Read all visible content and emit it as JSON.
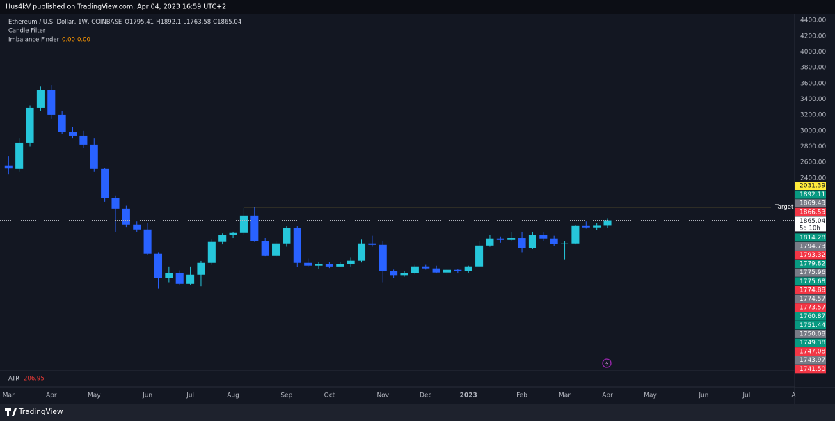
{
  "header": "Hus4kV published on TradingView.com, Apr 04, 2023 16:59 UTC+2",
  "footer": "TradingView",
  "chart_data": {
    "type": "candlestick",
    "legend": {
      "symbol": "Ethereum / U.S. Dollar, 1W, COINBASE",
      "keys": [
        "O",
        "H",
        "L",
        "C"
      ],
      "indicators": [
        "Candle Filter",
        "Imbalance Finder"
      ],
      "imbalance_values": [
        {
          "value": 0,
          "label": "0.00"
        },
        {
          "value": 0,
          "label": "0.00"
        }
      ]
    },
    "up_color": "#26c6da",
    "down_color": "#2962ff",
    "open": [
      2560,
      2515,
      2849,
      3290,
      3510,
      3202,
      2981,
      2937,
      2823,
      2515,
      2144,
      2012,
      1810,
      1748,
      1440,
      1131,
      1193,
      1060,
      1175,
      1325,
      1590,
      1678,
      1704,
      1924,
      1598,
      1413,
      1572,
      1766,
      1325,
      1290,
      1310,
      1280,
      1308,
      1352,
      1572,
      1554,
      1219,
      1170,
      1193,
      1281,
      1255,
      1202,
      1237,
      1220,
      1281,
      1545,
      1634,
      1616,
      1640,
      1510,
      1678,
      1634,
      1565,
      1572,
      1792,
      1775,
      1795.41
    ],
    "high": [
      2680,
      2900,
      3320,
      3560,
      3580,
      3250,
      3050,
      3000,
      2900,
      2530,
      2180,
      2050,
      1850,
      1830,
      1460,
      1280,
      1230,
      1280,
      1350,
      1620,
      1700,
      1720,
      2020,
      2030,
      1640,
      1600,
      1790,
      1790,
      1380,
      1340,
      1340,
      1340,
      1390,
      1620,
      1670,
      1600,
      1240,
      1220,
      1300,
      1300,
      1290,
      1250,
      1250,
      1290,
      1600,
      1680,
      1660,
      1720,
      1720,
      1720,
      1710,
      1670,
      1600,
      1800,
      1850,
      1830,
      1892.1
    ],
    "low": [
      2450,
      2480,
      2800,
      3250,
      3150,
      2960,
      2900,
      2780,
      2480,
      2100,
      1720,
      1780,
      1720,
      1420,
      1000,
      1080,
      1040,
      1050,
      1030,
      1300,
      1560,
      1640,
      1680,
      1590,
      1410,
      1400,
      1530,
      1270,
      1270,
      1250,
      1260,
      1270,
      1280,
      1330,
      1530,
      1080,
      1130,
      1150,
      1180,
      1240,
      1190,
      1170,
      1190,
      1200,
      1270,
      1530,
      1580,
      1600,
      1460,
      1500,
      1600,
      1540,
      1370,
      1560,
      1760,
      1740,
      1763.58
    ],
    "close": [
      2520,
      2849,
      3290,
      3510,
      3202,
      2981,
      2937,
      2823,
      2515,
      2144,
      2012,
      1810,
      1748,
      1440,
      1131,
      1193,
      1060,
      1175,
      1325,
      1590,
      1678,
      1704,
      1924,
      1598,
      1413,
      1572,
      1766,
      1325,
      1290,
      1310,
      1280,
      1308,
      1352,
      1572,
      1554,
      1219,
      1170,
      1193,
      1281,
      1255,
      1202,
      1237,
      1220,
      1281,
      1545,
      1634,
      1616,
      1640,
      1510,
      1678,
      1634,
      1565,
      1572,
      1792,
      1775,
      1795,
      1865.04
    ],
    "xlim": [
      -0.8,
      73.5
    ],
    "xticks": [
      {
        "value": 0,
        "label": "Mar"
      },
      {
        "value": 4,
        "label": "Apr"
      },
      {
        "value": 8,
        "label": "May"
      },
      {
        "value": 13,
        "label": "Jun"
      },
      {
        "value": 17,
        "label": "Jul"
      },
      {
        "value": 21,
        "label": "Aug"
      },
      {
        "value": 26,
        "label": "Sep"
      },
      {
        "value": 30,
        "label": "Oct"
      },
      {
        "value": 35,
        "label": "Nov"
      },
      {
        "value": 39,
        "label": "Dec"
      },
      {
        "value": 43,
        "label": "2023"
      },
      {
        "value": 48,
        "label": "Feb"
      },
      {
        "value": 52,
        "label": "Mar"
      },
      {
        "value": 56,
        "label": "Apr"
      },
      {
        "value": 60,
        "label": "May"
      },
      {
        "value": 65,
        "label": "Jun"
      },
      {
        "value": 69,
        "label": "Jul"
      },
      {
        "value": 73.4,
        "label": "A"
      }
    ],
    "ylim": [
      0,
      4480
    ],
    "yticks": [
      {
        "value": 2400,
        "label": "2400.00"
      },
      {
        "value": 2600,
        "label": "2600.00"
      },
      {
        "value": 2800,
        "label": "2800.00"
      },
      {
        "value": 3000,
        "label": "3000.00"
      },
      {
        "value": 3200,
        "label": "3200.00"
      },
      {
        "value": 3400,
        "label": "3400.00"
      },
      {
        "value": 3600,
        "label": "3600.00"
      },
      {
        "value": 3800,
        "label": "3800.00"
      },
      {
        "value": 4000,
        "label": "4000.00"
      },
      {
        "value": 4200,
        "label": "4200.00"
      },
      {
        "value": 4400,
        "label": "4400.00"
      }
    ],
    "target_label": "Target",
    "countdown": "5d 10h",
    "side_labels": [
      {
        "value": 2031.39,
        "color": "#ffeb3b"
      },
      {
        "value": 1892.11,
        "color": "#089981"
      },
      {
        "value": 1869.43,
        "color": "#787b86"
      },
      {
        "value": 1866.53,
        "color": "#f23645"
      },
      {
        "value": 1865.04,
        "color": "#ffffff"
      },
      {
        "value": 1814.28,
        "color": "#089981"
      },
      {
        "value": 1794.73,
        "color": "#787b86"
      },
      {
        "value": 1793.32,
        "color": "#f23645"
      },
      {
        "value": 1779.82,
        "color": "#089981"
      },
      {
        "value": 1775.96,
        "color": "#787b86"
      },
      {
        "value": 1775.68,
        "color": "#089981"
      },
      {
        "value": 1774.88,
        "color": "#f23645"
      },
      {
        "value": 1774.57,
        "color": "#787b86"
      },
      {
        "value": 1773.57,
        "color": "#f23645"
      },
      {
        "value": 1760.87,
        "color": "#089981"
      },
      {
        "value": 1751.44,
        "color": "#089981"
      },
      {
        "value": 1750.08,
        "color": "#787b86"
      },
      {
        "value": 1749.38,
        "color": "#089981"
      },
      {
        "value": 1747.08,
        "color": "#f23645"
      },
      {
        "value": 1743.97,
        "color": "#787b86"
      },
      {
        "value": 1741.5,
        "label": "1741.50",
        "color": "#f23645"
      }
    ],
    "atr_name": "ATR",
    "atr_value": 206.95
  }
}
